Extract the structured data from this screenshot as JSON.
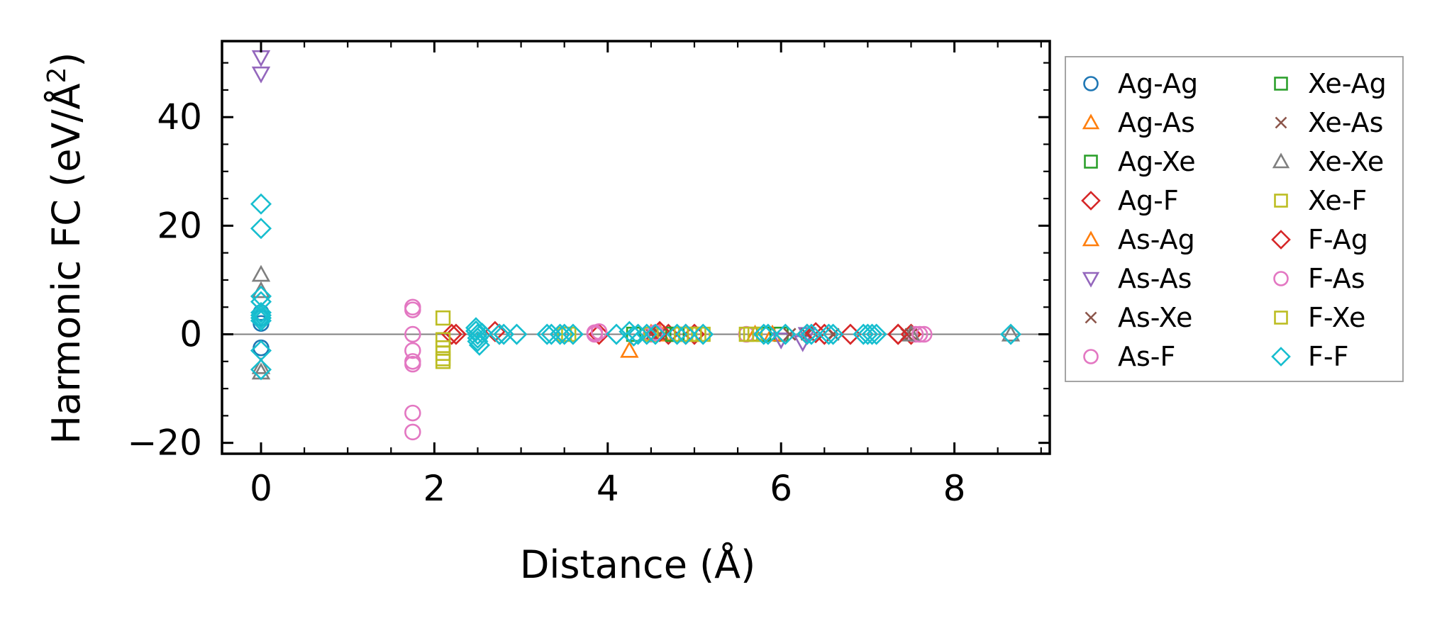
{
  "chart_data": {
    "type": "scatter",
    "title": "",
    "xlabel": "Distance (Å)",
    "ylabel_main": "Harmonic FC (eV/Å",
    "ylabel_sup": "2",
    "ylabel_close": ")",
    "xlim": [
      -0.45,
      9.1
    ],
    "ylim": [
      -22,
      54
    ],
    "xticks": [
      0,
      2,
      4,
      6,
      8
    ],
    "yticks": [
      -20,
      0,
      20,
      40
    ],
    "xtick_labels": [
      "0",
      "2",
      "4",
      "6",
      "8"
    ],
    "ytick_labels": [
      "−20",
      "0",
      "20",
      "40"
    ],
    "zero_line": true,
    "grid": false,
    "legend_position": "outside-right",
    "series": [
      {
        "name": "Ag-Ag",
        "marker": "circle",
        "color": "#1f77b4",
        "points": [
          [
            0,
            4
          ],
          [
            0,
            3
          ],
          [
            0,
            2
          ],
          [
            0,
            -2.5
          ]
        ]
      },
      {
        "name": "Ag-As",
        "marker": "triangle-up",
        "color": "#ff7f0e",
        "points": [
          [
            4.25,
            -3
          ],
          [
            4.6,
            0.3
          ],
          [
            5.7,
            0
          ]
        ]
      },
      {
        "name": "Ag-Xe",
        "marker": "square",
        "color": "#2ca02c",
        "points": [
          [
            4.3,
            0
          ],
          [
            4.8,
            0
          ],
          [
            6.0,
            0
          ]
        ]
      },
      {
        "name": "Ag-F",
        "marker": "diamond",
        "color": "#d62728",
        "points": [
          [
            2.2,
            0
          ],
          [
            2.75,
            0
          ],
          [
            3.9,
            0
          ],
          [
            4.7,
            0
          ],
          [
            5.0,
            0
          ],
          [
            6.3,
            0
          ],
          [
            6.5,
            0
          ],
          [
            6.8,
            0
          ],
          [
            7.35,
            0
          ],
          [
            7.5,
            0
          ]
        ]
      },
      {
        "name": "As-Ag",
        "marker": "triangle-up",
        "color": "#ff7f0e",
        "points": [
          [
            4.5,
            0.2
          ],
          [
            4.65,
            0
          ],
          [
            5.9,
            0
          ]
        ]
      },
      {
        "name": "As-As",
        "marker": "triangle-down",
        "color": "#9467bd",
        "points": [
          [
            0,
            51
          ],
          [
            0,
            48
          ],
          [
            6.0,
            -1
          ],
          [
            6.25,
            -1.5
          ],
          [
            6.3,
            0
          ]
        ]
      },
      {
        "name": "As-Xe",
        "marker": "x",
        "color": "#8c564b",
        "points": [
          [
            4.5,
            0
          ],
          [
            6.1,
            0
          ],
          [
            6.6,
            0
          ],
          [
            7.5,
            0
          ]
        ]
      },
      {
        "name": "As-F",
        "marker": "circle",
        "color": "#e377c2",
        "points": [
          [
            1.75,
            5
          ],
          [
            1.75,
            4.5
          ],
          [
            1.75,
            0
          ],
          [
            1.75,
            -3
          ],
          [
            1.75,
            -5
          ],
          [
            1.75,
            -5.5
          ],
          [
            1.75,
            -14.5
          ],
          [
            1.75,
            -18
          ],
          [
            3.85,
            0
          ],
          [
            3.9,
            0.5
          ],
          [
            4.5,
            0
          ],
          [
            5.6,
            0
          ],
          [
            7.55,
            0
          ],
          [
            7.65,
            0
          ]
        ]
      },
      {
        "name": "Xe-Ag",
        "marker": "square",
        "color": "#2ca02c",
        "points": [
          [
            4.75,
            0
          ],
          [
            5.8,
            0
          ]
        ]
      },
      {
        "name": "Xe-As",
        "marker": "x",
        "color": "#8c564b",
        "points": [
          [
            4.6,
            0
          ],
          [
            6.3,
            0
          ],
          [
            7.45,
            0
          ]
        ]
      },
      {
        "name": "Xe-Xe",
        "marker": "triangle-up",
        "color": "#7f7f7f",
        "points": [
          [
            0,
            11
          ],
          [
            0,
            8
          ],
          [
            0,
            -6
          ],
          [
            0,
            -7
          ],
          [
            7.5,
            0
          ],
          [
            8.65,
            0
          ]
        ]
      },
      {
        "name": "Xe-F",
        "marker": "square",
        "color": "#bcbd22",
        "points": [
          [
            2.1,
            3
          ],
          [
            2.1,
            -2.5
          ],
          [
            2.1,
            -3.5
          ],
          [
            2.1,
            -4.5
          ],
          [
            2.1,
            -5
          ],
          [
            3.55,
            0
          ],
          [
            4.5,
            0
          ],
          [
            4.85,
            0
          ],
          [
            5.0,
            0
          ],
          [
            5.1,
            0
          ],
          [
            5.6,
            0
          ],
          [
            5.7,
            0
          ]
        ]
      },
      {
        "name": "F-Ag",
        "marker": "diamond",
        "color": "#d62728",
        "points": [
          [
            2.25,
            0
          ],
          [
            2.7,
            0.5
          ],
          [
            4.6,
            0.5
          ],
          [
            4.9,
            0
          ],
          [
            6.4,
            0.3
          ],
          [
            7.35,
            0
          ]
        ]
      },
      {
        "name": "F-As",
        "marker": "circle",
        "color": "#e377c2",
        "points": [
          [
            3.85,
            0.3
          ],
          [
            4.55,
            0.3
          ],
          [
            7.6,
            0
          ]
        ]
      },
      {
        "name": "F-Xe",
        "marker": "square",
        "color": "#bcbd22",
        "points": [
          [
            2.1,
            -1
          ],
          [
            3.5,
            0
          ],
          [
            4.9,
            0
          ],
          [
            5.05,
            0
          ],
          [
            5.65,
            0
          ]
        ]
      },
      {
        "name": "F-F",
        "marker": "diamond",
        "color": "#17becf",
        "points": [
          [
            0,
            24
          ],
          [
            0,
            19.5
          ],
          [
            0,
            7
          ],
          [
            0,
            6
          ],
          [
            0,
            4
          ],
          [
            0,
            3.5
          ],
          [
            0,
            3
          ],
          [
            0,
            2.5
          ],
          [
            0,
            -3
          ],
          [
            0,
            -6.5
          ],
          [
            2.48,
            1.2
          ],
          [
            2.48,
            0.6
          ],
          [
            2.5,
            0
          ],
          [
            2.5,
            -0.7
          ],
          [
            2.5,
            -1.3
          ],
          [
            2.52,
            -2
          ],
          [
            2.55,
            0.2
          ],
          [
            2.75,
            0
          ],
          [
            2.8,
            0
          ],
          [
            2.95,
            0
          ],
          [
            3.3,
            0
          ],
          [
            3.35,
            0
          ],
          [
            3.45,
            0
          ],
          [
            3.5,
            0
          ],
          [
            3.6,
            0
          ],
          [
            4.1,
            0
          ],
          [
            4.25,
            0.5
          ],
          [
            4.3,
            -0.3
          ],
          [
            4.35,
            0
          ],
          [
            4.45,
            0
          ],
          [
            4.55,
            0
          ],
          [
            4.8,
            0
          ],
          [
            4.9,
            0
          ],
          [
            5.1,
            0
          ],
          [
            5.8,
            0
          ],
          [
            5.85,
            0
          ],
          [
            6.05,
            0
          ],
          [
            6.3,
            0
          ],
          [
            6.35,
            0
          ],
          [
            6.55,
            0
          ],
          [
            6.6,
            0
          ],
          [
            6.95,
            0
          ],
          [
            7.0,
            0
          ],
          [
            7.05,
            0
          ],
          [
            7.1,
            0
          ],
          [
            8.65,
            0
          ]
        ]
      }
    ]
  }
}
